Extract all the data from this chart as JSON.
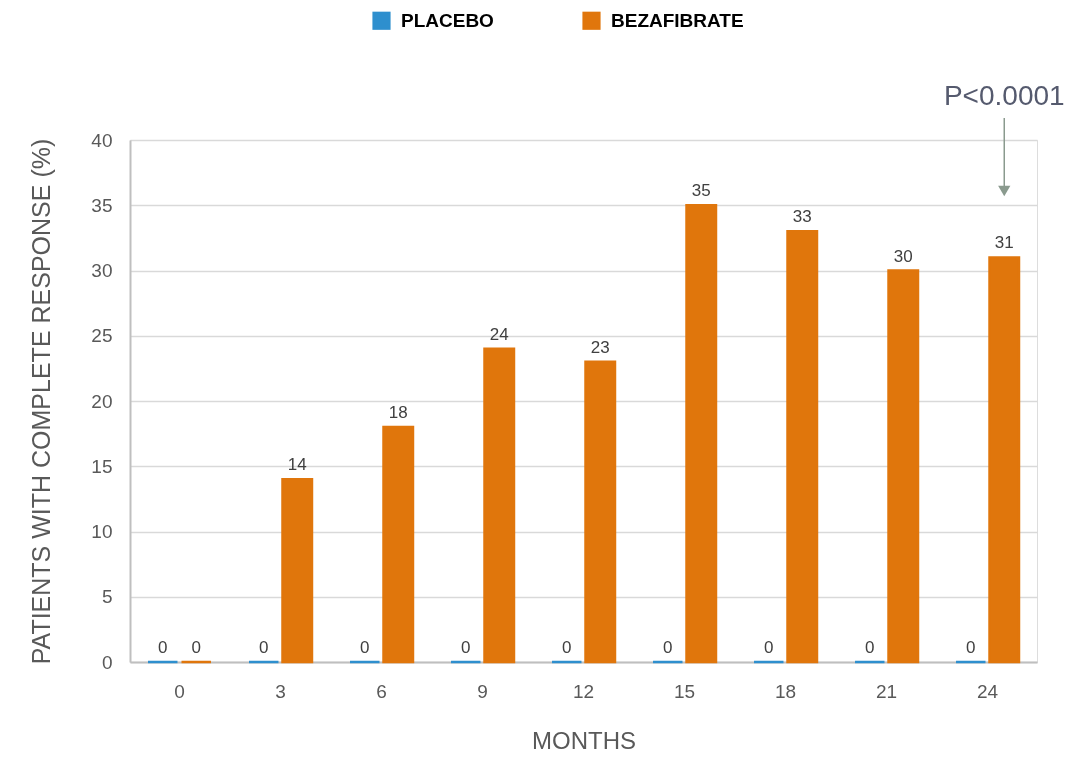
{
  "chart_data": {
    "type": "bar",
    "xlabel": "MONTHS",
    "ylabel": "PATIENTS WITH COMPLETE RESPONSE (%)",
    "categories": [
      "0",
      "3",
      "6",
      "9",
      "12",
      "15",
      "18",
      "21",
      "24"
    ],
    "series": [
      {
        "name": "PLACEBO",
        "color": "#2e8fce",
        "values": [
          0,
          0,
          0,
          0,
          0,
          0,
          0,
          0,
          0
        ]
      },
      {
        "name": "BEZAFIBRATE",
        "color": "#e0760c",
        "values": [
          0,
          14,
          18,
          24,
          23,
          35,
          33,
          30,
          31
        ]
      }
    ],
    "ylim": [
      0,
      40
    ],
    "yticks": [
      0,
      5,
      10,
      15,
      20,
      25,
      30,
      35,
      40
    ],
    "grid": "y",
    "legend": "top",
    "data_labels": true,
    "annotations": [
      "P<0.0001"
    ]
  }
}
